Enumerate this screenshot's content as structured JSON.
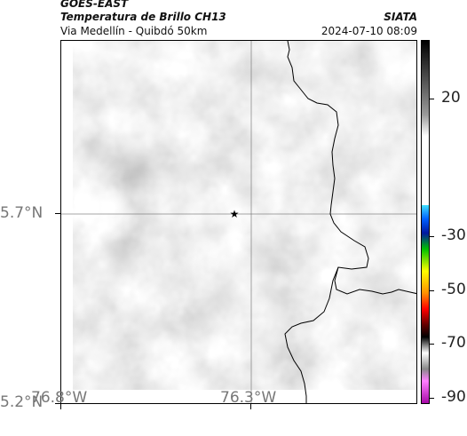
{
  "header": {
    "satellite": "GOES-EAST",
    "product": "Temperatura de Brillo CH13",
    "region": "Via Medellín - Quibdó 50km",
    "org": "SIATA",
    "datetime": "2024-07-10 08:09"
  },
  "axes": {
    "lat_ticks": [
      "5.7°N",
      "5.2°N"
    ],
    "lon_ticks": [
      "76.8°W",
      "76.3°W"
    ]
  },
  "colorbar": {
    "labels": [
      "20",
      "-30",
      "-50",
      "-70",
      "-90"
    ],
    "unit": ""
  },
  "marker": {
    "icon": "star-icon"
  },
  "colors": {
    "cloud_gray": "#8a8a8a",
    "frame": "#000000"
  }
}
